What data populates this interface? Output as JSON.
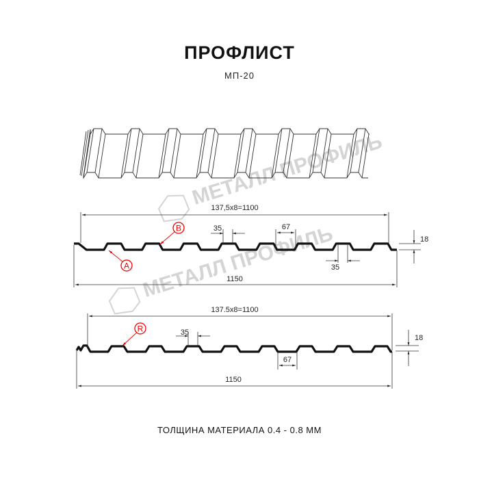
{
  "header": {
    "title": "ПРОФЛИСТ",
    "subtitle": "МП-20"
  },
  "watermark": {
    "text": "МЕТАЛЛ ПРОФИЛЬ"
  },
  "profile_1": {
    "overall_pitch": "137,5x8=1100",
    "top_width": "35",
    "bottom_width": "35",
    "trough_width": "67",
    "height": "18",
    "total_width": "1150",
    "marker_a": "A",
    "marker_b": "B"
  },
  "profile_2": {
    "overall_pitch": "137.5x8=1100",
    "top_width": "35",
    "trough_width": "67",
    "height": "18",
    "total_width": "1150",
    "marker_r": "R"
  },
  "footer": {
    "thickness": "ТОЛЩИНА МАТЕРИАЛА 0.4 - 0.8 ММ"
  },
  "colors": {
    "line": "#111111",
    "marker": "#e00000",
    "watermark": "#d4d4d4"
  }
}
